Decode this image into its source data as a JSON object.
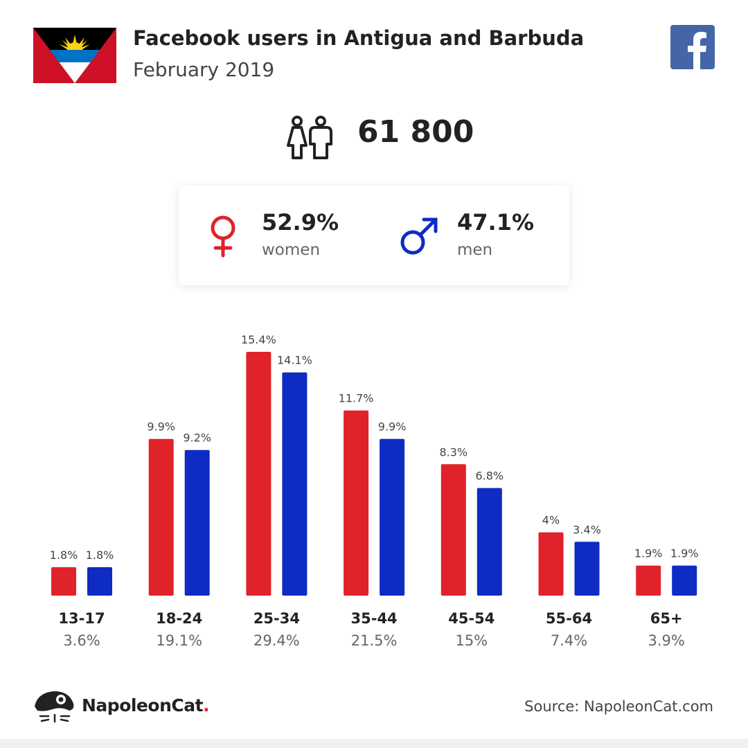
{
  "header": {
    "title": "Facebook users in Antigua and Barbuda",
    "subtitle": "February 2019"
  },
  "total": {
    "value": "61 800"
  },
  "gender": {
    "women": {
      "pct": "52.9%",
      "label": "women"
    },
    "men": {
      "pct": "47.1%",
      "label": "men"
    }
  },
  "colors": {
    "women": "#e0222a",
    "men": "#0e2bc4",
    "facebook": "#4466a9"
  },
  "icons": [
    "flag-icon",
    "facebook-icon",
    "people-icon",
    "female-icon",
    "male-icon",
    "napoleoncat-logo-icon"
  ],
  "chart_data": {
    "type": "bar",
    "categories": [
      "13-17",
      "18-24",
      "25-34",
      "35-44",
      "45-54",
      "55-64",
      "65+"
    ],
    "category_totals": [
      "3.6%",
      "19.1%",
      "29.4%",
      "21.5%",
      "15%",
      "7.4%",
      "3.9%"
    ],
    "series": [
      {
        "name": "women",
        "values": [
          1.8,
          9.9,
          15.4,
          11.7,
          8.3,
          4,
          1.9
        ],
        "labels": [
          "1.8%",
          "9.9%",
          "15.4%",
          "11.7%",
          "8.3%",
          "4%",
          "1.9%"
        ]
      },
      {
        "name": "men",
        "values": [
          1.8,
          9.2,
          14.1,
          9.9,
          6.8,
          3.4,
          1.9
        ],
        "labels": [
          "1.8%",
          "9.2%",
          "14.1%",
          "9.9%",
          "6.8%",
          "3.4%",
          "1.9%"
        ]
      }
    ],
    "ylim": [
      0,
      15.4
    ],
    "grid": false,
    "legend": "none"
  },
  "footer": {
    "brand_main": "NapoleonCat",
    "brand_dot": ".",
    "source": "Source: NapoleonCat.com"
  }
}
